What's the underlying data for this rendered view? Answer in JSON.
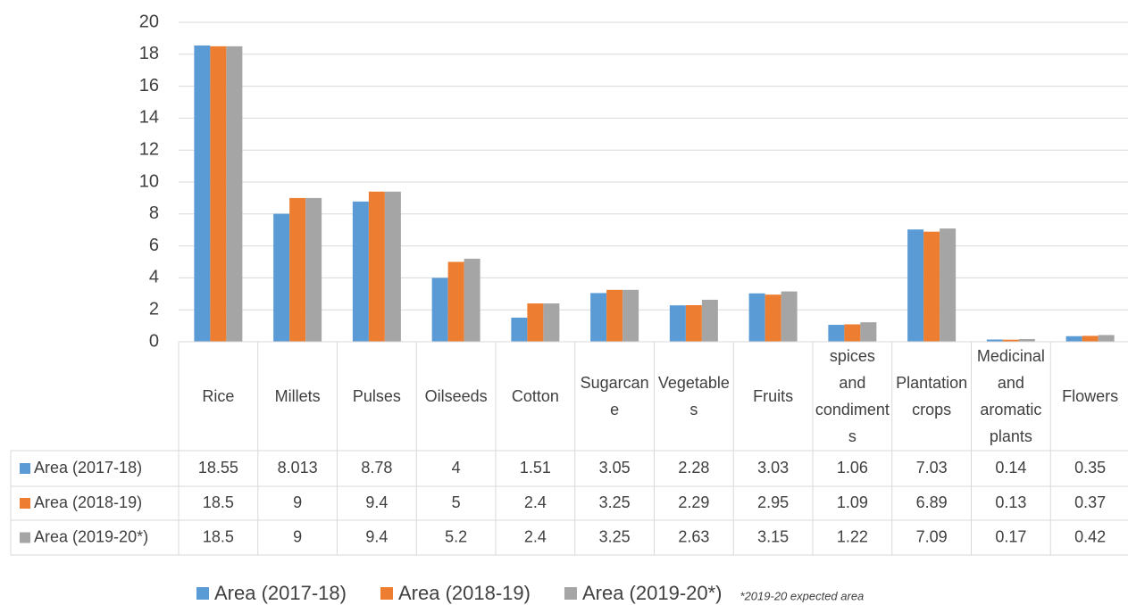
{
  "chart_data": {
    "type": "bar",
    "categories": [
      "Rice",
      "Millets",
      "Pulses",
      "Oilseeds",
      "Cotton",
      "Sugarcane",
      "Vegetables",
      "Fruits",
      "spices and condiments",
      "Plantation crops",
      "Medicinal and aromatic plants",
      "Flowers"
    ],
    "series": [
      {
        "name": "Area (2017-18)",
        "color": "#5b9bd5",
        "values": [
          18.55,
          8.013,
          8.78,
          4,
          1.51,
          3.05,
          2.28,
          3.03,
          1.06,
          7.03,
          0.14,
          0.35
        ]
      },
      {
        "name": "Area (2018-19)",
        "color": "#ed7d31",
        "values": [
          18.5,
          9,
          9.4,
          5,
          2.4,
          3.25,
          2.29,
          2.95,
          1.09,
          6.89,
          0.13,
          0.37
        ]
      },
      {
        "name": "Area (2019-20*)",
        "color": "#a5a5a5",
        "values": [
          18.5,
          9,
          9.4,
          5.2,
          2.4,
          3.25,
          2.63,
          3.15,
          1.22,
          7.09,
          0.17,
          0.42
        ]
      }
    ],
    "ylim": [
      0,
      20
    ],
    "yticks": [
      0,
      2,
      4,
      6,
      8,
      10,
      12,
      14,
      16,
      18,
      20
    ],
    "grid": true,
    "annotation": "*2019-20 expected area"
  }
}
